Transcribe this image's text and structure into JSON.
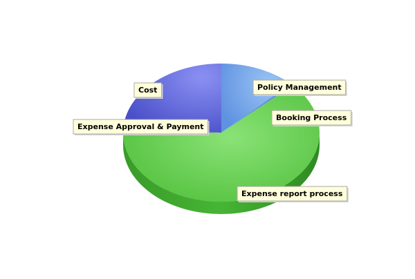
{
  "chart_data": {
    "type": "pie",
    "title": "",
    "slices": [
      {
        "label": "Policy Management",
        "value": 12.5,
        "color": "#6fa0e8"
      },
      {
        "label": "Booking Process",
        "value": 0.5,
        "color": "#5a8be0"
      },
      {
        "label": "Expense report process",
        "value": 62.0,
        "color": "#5ccc45"
      },
      {
        "label": "Expense Approval & Payment",
        "value": 0.5,
        "color": "#5a60d8"
      },
      {
        "label": "Cost",
        "value": 24.5,
        "color": "#6a70e0"
      }
    ],
    "start_angle_deg": -90,
    "direction": "clockwise",
    "rendering": "3d",
    "legend": "none"
  }
}
